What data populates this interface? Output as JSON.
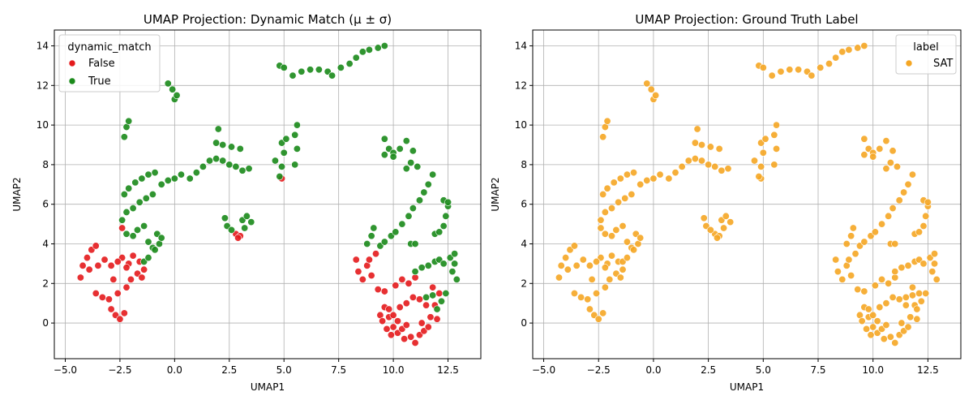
{
  "chart_data": [
    {
      "type": "scatter",
      "title": "UMAP Projection: Dynamic Match (μ ± σ)",
      "xlabel": "UMAP1",
      "ylabel": "UMAP2",
      "xlim": [
        -5.5,
        14.0
      ],
      "ylim": [
        -1.8,
        14.8
      ],
      "xticks": [
        -5.0,
        -2.5,
        0.0,
        2.5,
        5.0,
        7.5,
        10.0,
        12.5
      ],
      "xtick_labels": [
        "−5.0",
        "−2.5",
        "0.0",
        "2.5",
        "5.0",
        "7.5",
        "10.0",
        "12.5"
      ],
      "yticks": [
        0,
        2,
        4,
        6,
        8,
        10,
        12,
        14
      ],
      "ytick_labels": [
        "0",
        "2",
        "4",
        "6",
        "8",
        "10",
        "12",
        "14"
      ],
      "grid": true,
      "legend": {
        "title": "dynamic_match",
        "position": "top-left"
      },
      "series": [
        {
          "name": "False",
          "color": "#e41a1c",
          "points": [
            [
              -4.3,
              2.3
            ],
            [
              -4.2,
              2.9
            ],
            [
              -4.0,
              3.3
            ],
            [
              -3.8,
              3.7
            ],
            [
              -3.6,
              3.9
            ],
            [
              -3.9,
              2.7
            ],
            [
              -3.5,
              2.9
            ],
            [
              -3.2,
              3.2
            ],
            [
              -3.6,
              1.5
            ],
            [
              -3.3,
              1.3
            ],
            [
              -3.0,
              1.2
            ],
            [
              -2.8,
              2.2
            ],
            [
              -2.6,
              1.5
            ],
            [
              -2.9,
              0.7
            ],
            [
              -2.7,
              0.4
            ],
            [
              -2.5,
              0.2
            ],
            [
              -2.3,
              0.5
            ],
            [
              -2.2,
              1.8
            ],
            [
              -2.0,
              2.2
            ],
            [
              -1.7,
              2.5
            ],
            [
              -1.5,
              2.3
            ],
            [
              -2.1,
              3.0
            ],
            [
              -1.9,
              3.4
            ],
            [
              -1.6,
              3.1
            ],
            [
              -1.4,
              2.7
            ],
            [
              -2.4,
              3.3
            ],
            [
              -2.2,
              2.8
            ],
            [
              -2.9,
              2.9
            ],
            [
              -2.6,
              3.1
            ],
            [
              -2.4,
              4.8
            ],
            [
              2.8,
              4.5
            ],
            [
              3.0,
              4.4
            ],
            [
              2.9,
              4.3
            ],
            [
              4.9,
              7.3
            ],
            [
              8.3,
              3.2
            ],
            [
              8.4,
              2.6
            ],
            [
              8.6,
              2.2
            ],
            [
              8.8,
              2.9
            ],
            [
              9.0,
              2.4
            ],
            [
              8.9,
              3.2
            ],
            [
              9.2,
              3.5
            ],
            [
              9.3,
              1.7
            ],
            [
              9.4,
              0.4
            ],
            [
              9.5,
              0.1
            ],
            [
              9.7,
              -0.3
            ],
            [
              9.6,
              0.8
            ],
            [
              9.8,
              0.3
            ],
            [
              10.0,
              -0.2
            ],
            [
              10.2,
              -0.5
            ],
            [
              10.4,
              -0.3
            ],
            [
              10.6,
              -0.1
            ],
            [
              10.8,
              -0.7
            ],
            [
              11.0,
              -1.0
            ],
            [
              11.2,
              -0.6
            ],
            [
              11.4,
              -0.4
            ],
            [
              11.6,
              -0.2
            ],
            [
              11.7,
              0.3
            ],
            [
              11.5,
              0.9
            ],
            [
              11.2,
              1.2
            ],
            [
              10.9,
              1.3
            ],
            [
              10.6,
              1.0
            ],
            [
              10.3,
              0.8
            ],
            [
              10.1,
              1.9
            ],
            [
              10.4,
              2.2
            ],
            [
              10.7,
              2.0
            ],
            [
              11.0,
              2.3
            ],
            [
              10.2,
              0.1
            ],
            [
              10.0,
              0.4
            ],
            [
              9.8,
              0.7
            ],
            [
              9.6,
              1.6
            ],
            [
              11.9,
              0.9
            ],
            [
              12.1,
              1.5
            ],
            [
              11.8,
              1.8
            ],
            [
              12.0,
              0.2
            ],
            [
              11.3,
              0.0
            ],
            [
              10.5,
              -0.8
            ],
            [
              9.9,
              -0.6
            ]
          ]
        },
        {
          "name": "True",
          "color": "#1a8a1a",
          "points": [
            [
              -2.3,
              9.4
            ],
            [
              -2.2,
              9.9
            ],
            [
              -2.1,
              10.2
            ],
            [
              -2.3,
              6.5
            ],
            [
              -2.1,
              6.8
            ],
            [
              -1.8,
              7.1
            ],
            [
              -1.5,
              7.3
            ],
            [
              -1.2,
              7.5
            ],
            [
              -0.9,
              7.6
            ],
            [
              -2.4,
              5.2
            ],
            [
              -2.2,
              5.6
            ],
            [
              -1.9,
              5.8
            ],
            [
              -1.6,
              6.1
            ],
            [
              -1.3,
              6.3
            ],
            [
              -1.0,
              6.5
            ],
            [
              -1.7,
              4.7
            ],
            [
              -1.4,
              4.9
            ],
            [
              -2.2,
              4.5
            ],
            [
              -1.9,
              4.4
            ],
            [
              -1.2,
              4.1
            ],
            [
              -1.0,
              3.8
            ],
            [
              -1.4,
              3.1
            ],
            [
              -1.2,
              3.3
            ],
            [
              -0.9,
              3.7
            ],
            [
              -0.7,
              4.0
            ],
            [
              -0.8,
              4.5
            ],
            [
              -0.6,
              4.3
            ],
            [
              -0.3,
              12.1
            ],
            [
              -0.1,
              11.8
            ],
            [
              0.0,
              11.3
            ],
            [
              0.1,
              11.5
            ],
            [
              -0.6,
              7.0
            ],
            [
              -0.3,
              7.2
            ],
            [
              0.0,
              7.3
            ],
            [
              0.3,
              7.5
            ],
            [
              0.7,
              7.3
            ],
            [
              1.0,
              7.6
            ],
            [
              1.3,
              7.9
            ],
            [
              1.6,
              8.2
            ],
            [
              1.9,
              8.3
            ],
            [
              2.2,
              8.2
            ],
            [
              2.5,
              8.0
            ],
            [
              2.8,
              7.9
            ],
            [
              3.1,
              7.7
            ],
            [
              3.4,
              7.8
            ],
            [
              3.0,
              8.8
            ],
            [
              2.6,
              8.9
            ],
            [
              2.2,
              9.0
            ],
            [
              1.9,
              9.1
            ],
            [
              2.0,
              9.8
            ],
            [
              2.3,
              5.3
            ],
            [
              2.4,
              4.9
            ],
            [
              2.6,
              4.7
            ],
            [
              3.1,
              5.2
            ],
            [
              3.3,
              5.4
            ],
            [
              3.5,
              5.1
            ],
            [
              3.2,
              4.8
            ],
            [
              4.8,
              13.0
            ],
            [
              5.0,
              12.9
            ],
            [
              5.4,
              12.5
            ],
            [
              5.8,
              12.7
            ],
            [
              6.2,
              12.8
            ],
            [
              6.6,
              12.8
            ],
            [
              7.0,
              12.7
            ],
            [
              7.2,
              12.5
            ],
            [
              7.6,
              12.9
            ],
            [
              8.0,
              13.1
            ],
            [
              8.3,
              13.4
            ],
            [
              8.6,
              13.7
            ],
            [
              8.9,
              13.8
            ],
            [
              9.3,
              13.9
            ],
            [
              9.6,
              14.0
            ],
            [
              4.8,
              7.4
            ],
            [
              4.9,
              7.9
            ],
            [
              5.0,
              8.6
            ],
            [
              4.9,
              9.1
            ],
            [
              5.1,
              9.3
            ],
            [
              5.5,
              8.0
            ],
            [
              5.6,
              8.8
            ],
            [
              5.5,
              9.5
            ],
            [
              5.6,
              10.0
            ],
            [
              4.6,
              8.2
            ],
            [
              8.8,
              4.0
            ],
            [
              9.0,
              4.4
            ],
            [
              9.1,
              4.8
            ],
            [
              9.4,
              3.9
            ],
            [
              9.6,
              4.1
            ],
            [
              9.9,
              4.4
            ],
            [
              10.1,
              4.6
            ],
            [
              10.4,
              5.0
            ],
            [
              10.7,
              5.4
            ],
            [
              10.9,
              5.8
            ],
            [
              11.2,
              6.2
            ],
            [
              11.4,
              6.6
            ],
            [
              11.6,
              7.0
            ],
            [
              11.8,
              7.5
            ],
            [
              9.6,
              9.3
            ],
            [
              9.8,
              8.8
            ],
            [
              10.0,
              8.6
            ],
            [
              10.3,
              8.8
            ],
            [
              10.6,
              9.2
            ],
            [
              10.9,
              8.7
            ],
            [
              10.8,
              8.1
            ],
            [
              11.1,
              7.9
            ],
            [
              10.6,
              7.8
            ],
            [
              10.0,
              8.4
            ],
            [
              9.6,
              8.5
            ],
            [
              10.8,
              4.0
            ],
            [
              11.0,
              4.0
            ],
            [
              11.9,
              4.5
            ],
            [
              12.1,
              4.6
            ],
            [
              12.3,
              4.9
            ],
            [
              12.4,
              5.4
            ],
            [
              12.3,
              6.2
            ],
            [
              12.5,
              5.9
            ],
            [
              12.5,
              6.1
            ],
            [
              11.9,
              3.1
            ],
            [
              12.1,
              3.2
            ],
            [
              12.3,
              3.0
            ],
            [
              12.6,
              3.3
            ],
            [
              12.8,
              3.5
            ],
            [
              12.7,
              2.6
            ],
            [
              12.9,
              2.2
            ],
            [
              12.8,
              3.0
            ],
            [
              11.6,
              2.9
            ],
            [
              11.3,
              2.8
            ],
            [
              11.0,
              2.6
            ],
            [
              11.8,
              1.4
            ],
            [
              11.5,
              1.3
            ],
            [
              12.2,
              1.1
            ],
            [
              12.4,
              1.5
            ],
            [
              12.0,
              0.7
            ]
          ]
        }
      ]
    },
    {
      "type": "scatter",
      "title": "UMAP Projection: Ground Truth Label",
      "xlabel": "UMAP1",
      "ylabel": "UMAP2",
      "xlim": [
        -5.5,
        14.0
      ],
      "ylim": [
        -1.8,
        14.8
      ],
      "xticks": [
        -5.0,
        -2.5,
        0.0,
        2.5,
        5.0,
        7.5,
        10.0,
        12.5
      ],
      "xtick_labels": [
        "−5.0",
        "−2.5",
        "0.0",
        "2.5",
        "5.0",
        "7.5",
        "10.0",
        "12.5"
      ],
      "yticks": [
        0,
        2,
        4,
        6,
        8,
        10,
        12,
        14
      ],
      "ytick_labels": [
        "0",
        "2",
        "4",
        "6",
        "8",
        "10",
        "12",
        "14"
      ],
      "grid": true,
      "legend": {
        "title": "label",
        "position": "top-right"
      },
      "series": [
        {
          "name": "SAT",
          "color": "#f5a623",
          "points": "all-points"
        }
      ]
    }
  ]
}
